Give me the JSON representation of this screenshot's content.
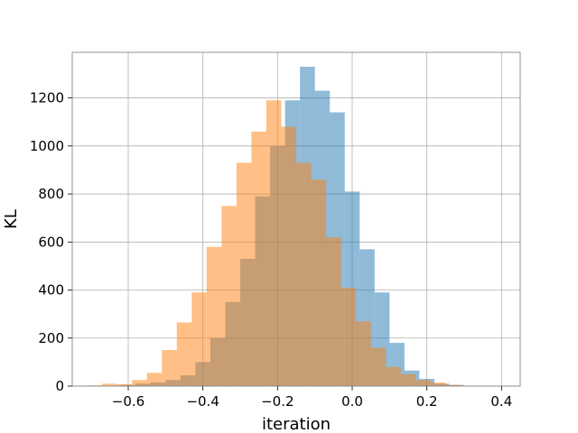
{
  "chart_data": {
    "type": "histogram",
    "title": "",
    "xlabel": "iteration",
    "ylabel": "KL",
    "xlim": [
      -0.75,
      0.45
    ],
    "ylim": [
      0,
      1390
    ],
    "grid": true,
    "legend": "none",
    "x_ticks": [
      -0.6,
      -0.4,
      -0.2,
      0.0,
      0.2,
      0.4
    ],
    "x_tick_labels": [
      "−0.6",
      "−0.4",
      "−0.2",
      "0.0",
      "0.2",
      "0.4"
    ],
    "y_ticks": [
      0,
      200,
      400,
      600,
      800,
      1000,
      1200
    ],
    "y_tick_labels": [
      "0",
      "200",
      "400",
      "600",
      "800",
      "1000",
      "1200"
    ],
    "series": [
      {
        "color": "#1f77b4",
        "alpha": 0.5,
        "bin_edges": [
          -0.66,
          -0.62,
          -0.58,
          -0.54,
          -0.5,
          -0.46,
          -0.42,
          -0.38,
          -0.34,
          -0.3,
          -0.26,
          -0.22,
          -0.18,
          -0.14,
          -0.1,
          -0.06,
          -0.02,
          0.02,
          0.06,
          0.1,
          0.14,
          0.18,
          0.22,
          0.26,
          0.3,
          0.34,
          0.38,
          0.42
        ],
        "counts": [
          2,
          5,
          10,
          15,
          25,
          45,
          100,
          200,
          350,
          530,
          790,
          1000,
          1190,
          1330,
          1230,
          1140,
          810,
          570,
          390,
          180,
          65,
          30,
          10,
          5,
          2,
          1,
          1
        ]
      },
      {
        "color": "#ff7f0e",
        "alpha": 0.5,
        "bin_edges": [
          -0.71,
          -0.67,
          -0.63,
          -0.59,
          -0.55,
          -0.51,
          -0.47,
          -0.43,
          -0.39,
          -0.35,
          -0.31,
          -0.27,
          -0.23,
          -0.19,
          -0.15,
          -0.11,
          -0.07,
          -0.03,
          0.01,
          0.05,
          0.09,
          0.13,
          0.17,
          0.21,
          0.25,
          0.29
        ],
        "counts": [
          3,
          10,
          8,
          25,
          55,
          150,
          265,
          390,
          580,
          750,
          930,
          1060,
          1190,
          1080,
          930,
          860,
          620,
          410,
          270,
          160,
          80,
          50,
          25,
          15,
          5
        ]
      }
    ]
  }
}
